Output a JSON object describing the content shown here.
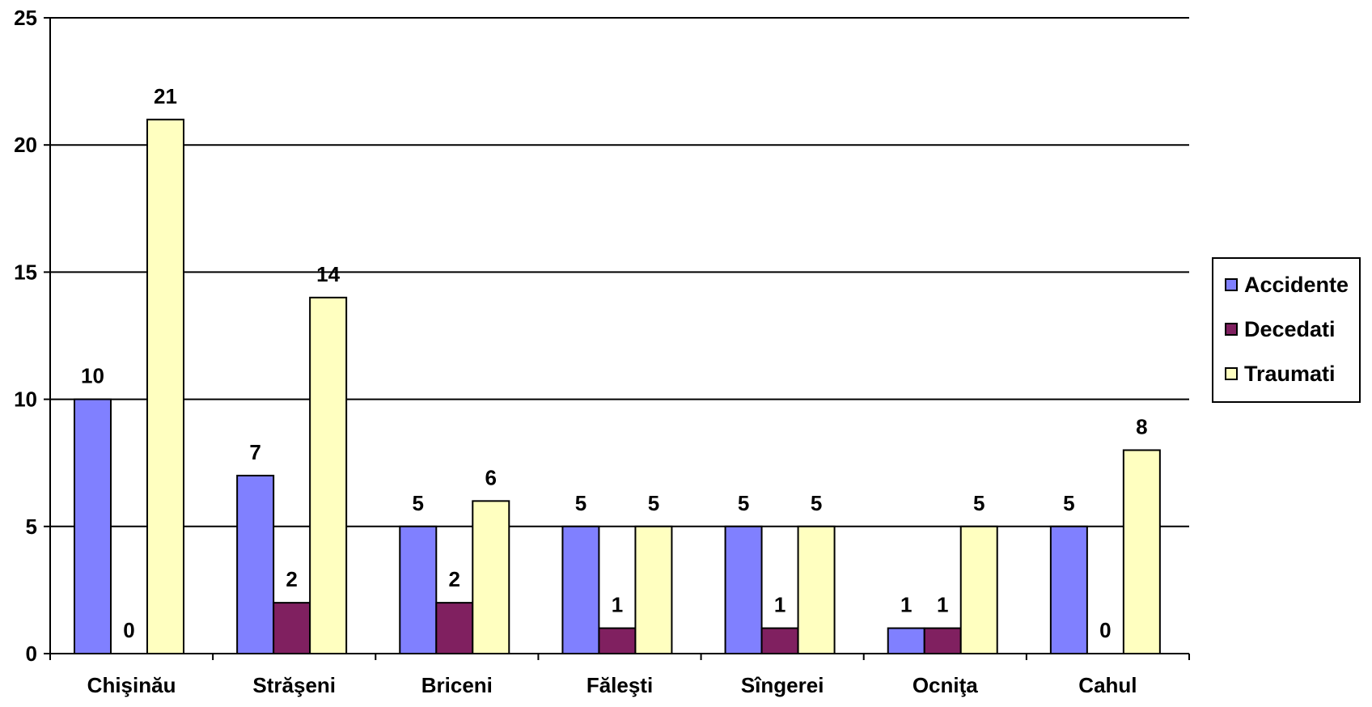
{
  "chart_data": {
    "type": "bar",
    "categories": [
      "Chişinău",
      "Străşeni",
      "Briceni",
      "Făleşti",
      "Sîngerei",
      "Ocniţa",
      "Cahul"
    ],
    "series": [
      {
        "name": "Accidente",
        "color": "#8080ff",
        "values": [
          10,
          7,
          5,
          5,
          5,
          1,
          5
        ]
      },
      {
        "name": "Decedati",
        "color": "#802060",
        "values": [
          0,
          2,
          2,
          1,
          1,
          1,
          0
        ]
      },
      {
        "name": "Traumati",
        "color": "#ffffc0",
        "values": [
          21,
          14,
          6,
          5,
          5,
          5,
          8
        ]
      }
    ],
    "y_ticks": [
      "0",
      "5",
      "10",
      "15",
      "20",
      "25"
    ],
    "ylim": [
      0,
      25
    ],
    "grid": true,
    "legend_position": "right",
    "title": "",
    "xlabel": "",
    "ylabel": ""
  }
}
